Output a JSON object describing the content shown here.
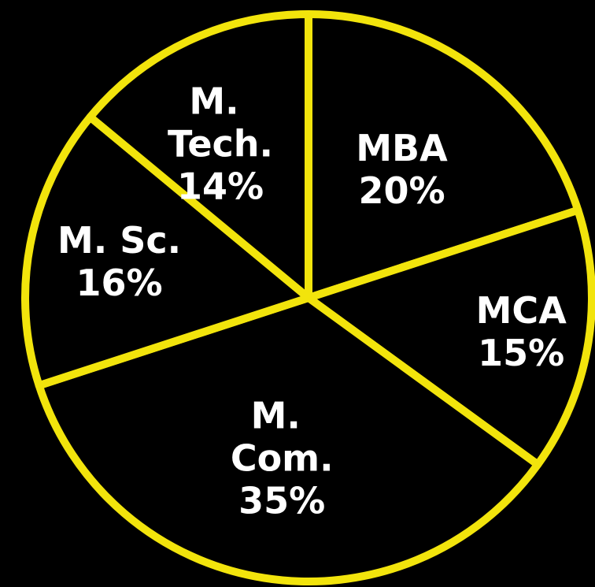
{
  "chart_data": {
    "type": "pie",
    "categories": [
      "MBA",
      "MCA",
      "M. Com.",
      "M. Sc.",
      "M. Tech."
    ],
    "values": [
      20,
      15,
      35,
      16,
      14
    ],
    "value_labels": [
      "20%",
      "15%",
      "35%",
      "16%",
      "14%"
    ],
    "color": "#000000",
    "edge_color": "#f2e40c",
    "label_color": "#ffffff"
  }
}
